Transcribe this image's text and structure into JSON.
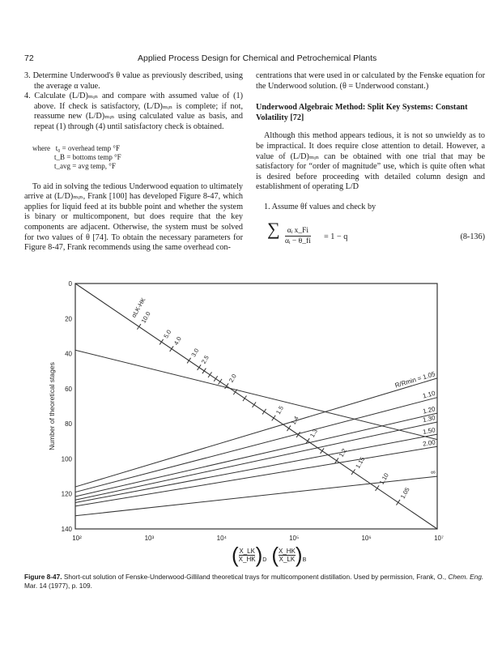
{
  "header": {
    "page_number": "72",
    "running_title": "Applied Process Design for Chemical and Petrochemical Plants"
  },
  "left_column": {
    "item3": "3. Determine Underwood's θ value as previously described, using the average α value.",
    "item4": "4. Calculate (L/D)ₘᵢₙ and compare with assumed value of (1) above. If check is satisfactory, (L/D)ₘᵢₙ is complete; if not, reassume new (L/D)ₘᵢₙ using calculated value as basis, and repeat (1) through (4) until satisfactory check is obtained.",
    "where_lines": [
      "where   t₀ = overhead temp °F",
      "            t_B = bottoms temp °F",
      "            t_avg = avg temp, °F"
    ],
    "paragraph": "To aid in solving the tedious Underwood equation to ultimately arrive at (L/D)ₘᵢₙ, Frank [100] has developed Figure 8-47, which applies for liquid feed at its bubble point and whether the system is binary or multicomponent, but does require that the key components are adjacent. Otherwise, the system must be solved for two values of θ [74]. To obtain the necessary parameters for Figure 8-47, Frank recommends using the same overhead con-"
  },
  "right_column": {
    "continuation": "centrations that were used in or calculated by the Fenske equation for the Underwood solution. (θ = Underwood constant.)",
    "heading": "Underwood Algebraic Method: Split Key Systems: Constant Volatility [72]",
    "paragraph": "Although this method appears tedious, it is not so unwieldy as to be impractical. It does require close attention to detail. However, a value of (L/D)ₘᵢₙ can be obtained with one trial that may be satisfactory for “order of magnitude” use, which is quite often what is desired before proceeding with detailed column design and establishment of operating L/D",
    "step1": "1. Assume θf values and check by",
    "equation": {
      "sigma": "∑",
      "numerator": "αᵢ x_Fi",
      "denominator": "αᵢ − θ_fi",
      "rhs": "= 1 − q",
      "number": "(8-136)"
    }
  },
  "chart_data": {
    "type": "line",
    "title": "",
    "ylabel": "Number of theoretical stages",
    "xlabel_parts": {
      "left_num": "X_LK",
      "left_den": "X_HK",
      "left_sub": "D",
      "right_num": "X_HK",
      "right_den": "X_LK",
      "right_sub": "B"
    },
    "x_scale": "log",
    "xlim": [
      100,
      10000000
    ],
    "ylim": [
      140,
      0
    ],
    "y_inverted": true,
    "grid": false,
    "x_tick_labels": [
      "10²",
      "10³",
      "10⁴",
      "10⁵",
      "10⁶",
      "10⁷"
    ],
    "x_ticks": [
      100,
      1000,
      10000,
      100000,
      1000000,
      10000000
    ],
    "y_ticks": [
      0,
      20,
      40,
      60,
      80,
      100,
      120,
      140
    ],
    "alpha_scale": {
      "label": "αLK-HK",
      "from": [
        100,
        0
      ],
      "to": [
        10000000,
        140
      ],
      "tick_labels": [
        "10.0",
        "5.0",
        "4.0",
        "3.0",
        "2.5",
        "2.0",
        "1.5",
        "1.4",
        "1.3",
        "1.2",
        "1.15",
        "1.10",
        "1.05"
      ]
    },
    "reference_line": {
      "from": [
        100,
        38
      ],
      "to": [
        10000000,
        89
      ]
    },
    "rr_label": "R/Rmin = ",
    "series": [
      {
        "name": "1.05",
        "y_left": 116,
        "y_right": 54
      },
      {
        "name": "1.10",
        "y_left": 119,
        "y_right": 65
      },
      {
        "name": "1.20",
        "y_left": 121.5,
        "y_right": 74
      },
      {
        "name": "1.30",
        "y_left": 123.5,
        "y_right": 79
      },
      {
        "name": "1.50",
        "y_left": 125,
        "y_right": 86
      },
      {
        "name": "2.00",
        "y_left": 127,
        "y_right": 93
      },
      {
        "name": "∞",
        "y_left": 132.5,
        "y_right": 110
      }
    ]
  },
  "caption": {
    "label": "Figure 8-47.",
    "text": " Short-cut solution of Fenske-Underwood-Gilliland theoretical trays for multicomponent distillation. Used by permission, Frank, O., ",
    "journal": "Chem. Eng.",
    "tail": " Mar. 14 (1977), p. 109."
  }
}
